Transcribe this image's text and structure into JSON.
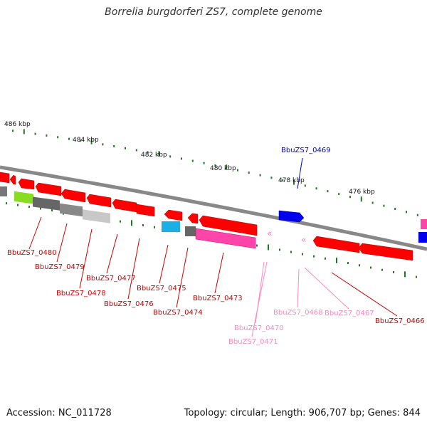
{
  "title": "Borrelia burgdorferi ZS7, complete genome",
  "footer": {
    "accession": "Accession: NC_011728",
    "summary": "Topology: circular; Length: 906,707 bp; Genes: 844"
  },
  "colors": {
    "red_gene": "#ff0000",
    "pink_gene": "#ff44aa",
    "blue_gene": "#0000ee",
    "cyan_gene": "#1ab0e6",
    "green_gene": "#88dd22",
    "gray_gene": "#777777",
    "label_red": "#cc0000",
    "label_pink": "#ff88bb",
    "label_blue": "#0000cc",
    "tick_green": "#227722"
  },
  "scale_labels": [
    "486 kbp",
    "484 kbp",
    "482 kbp",
    "480 kbp",
    "478 kbp",
    "476 kbp"
  ],
  "gene_labels": [
    {
      "text": "BbuZS7_0480",
      "color": "red"
    },
    {
      "text": "BbuZS7_0479",
      "color": "red"
    },
    {
      "text": "BbuZS7_0478",
      "color": "red"
    },
    {
      "text": "BbuZS7_0477",
      "color": "red"
    },
    {
      "text": "BbuZS7_0476",
      "color": "red"
    },
    {
      "text": "BbuZS7_0475",
      "color": "red"
    },
    {
      "text": "BbuZS7_0474",
      "color": "red"
    },
    {
      "text": "BbuZS7_0473",
      "color": "red"
    },
    {
      "text": "BbuZS7_0469",
      "color": "blue"
    },
    {
      "text": "BbuZS7_0470",
      "color": "pink"
    },
    {
      "text": "BbuZS7_0471",
      "color": "pink"
    },
    {
      "text": "BbuZS7_0468",
      "color": "pink"
    },
    {
      "text": "BbuZS7_0467",
      "color": "pink"
    },
    {
      "text": "BbuZS7_0466",
      "color": "red"
    }
  ]
}
